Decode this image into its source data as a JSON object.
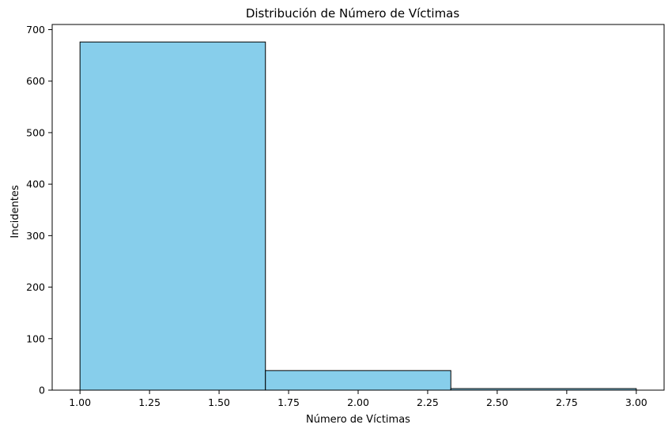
{
  "chart_data": {
    "type": "bar",
    "title": "Distribución de Número de Víctimas",
    "xlabel": "Número de Víctimas",
    "ylabel": "Incidentes",
    "bins": [
      {
        "x0": 1.0,
        "x1": 1.6667,
        "value": 676
      },
      {
        "x0": 1.6667,
        "x1": 2.3333,
        "value": 38
      },
      {
        "x0": 2.3333,
        "x1": 3.0,
        "value": 3
      }
    ],
    "xlim": [
      0.9,
      3.1
    ],
    "ylim": [
      0,
      710
    ],
    "xticks": [
      1.0,
      1.25,
      1.5,
      1.75,
      2.0,
      2.25,
      2.5,
      2.75,
      3.0
    ],
    "xtick_labels": [
      "1.00",
      "1.25",
      "1.50",
      "1.75",
      "2.00",
      "2.25",
      "2.50",
      "2.75",
      "3.00"
    ],
    "yticks": [
      0,
      100,
      200,
      300,
      400,
      500,
      600,
      700
    ],
    "ytick_labels": [
      "0",
      "100",
      "200",
      "300",
      "400",
      "500",
      "600",
      "700"
    ],
    "bar_color": "#87ceeb",
    "edge_color": "#000000",
    "grid": false
  }
}
